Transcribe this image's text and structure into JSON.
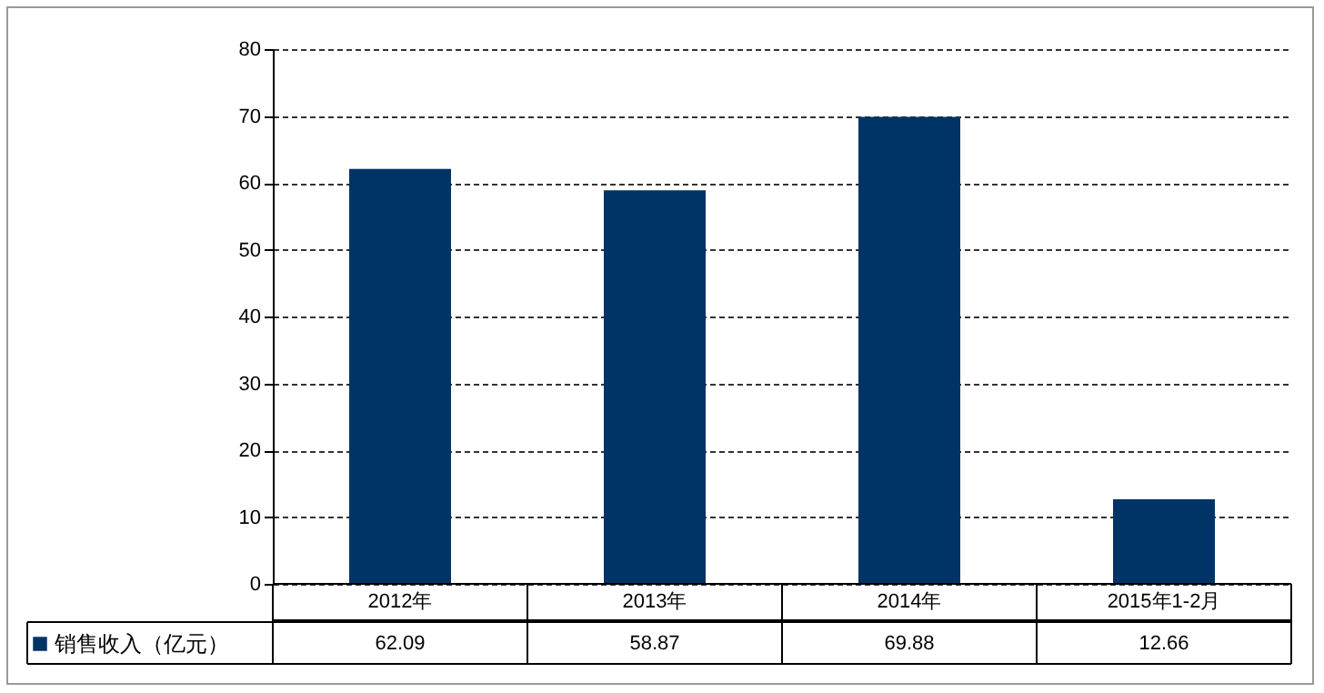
{
  "chart_data": {
    "type": "bar",
    "categories": [
      "2012年",
      "2013年",
      "2014年",
      "2015年1-2月"
    ],
    "series": [
      {
        "name": "销售收入（亿元）",
        "color": "#003366",
        "values": [
          62.09,
          58.87,
          69.88,
          12.66
        ]
      }
    ],
    "ylim": [
      0,
      80
    ],
    "yticks": [
      0,
      10,
      20,
      30,
      40,
      50,
      60,
      70,
      80
    ],
    "grid": "y",
    "data_labels": true,
    "legend": "bottom left"
  }
}
